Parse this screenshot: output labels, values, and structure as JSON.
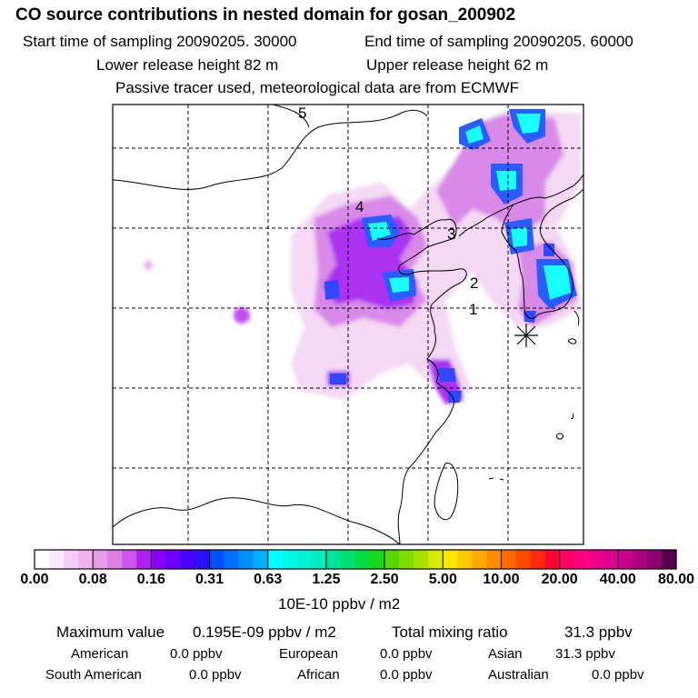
{
  "header": {
    "title": "CO  source contributions in nested domain for gosan_200902",
    "start_label": "Start time of sampling 20090205. 30000",
    "end_label": "End time of sampling 20090205. 60000",
    "lower_label": "Lower release height   82 m",
    "upper_label": "Upper release height   62 m",
    "note": "Passive tracer used, meteorological data are from ECMWF"
  },
  "chart_data": {
    "type": "heatmap",
    "title": "CO  source contributions in nested domain for gosan_200902",
    "map": "East Asia (China, Korea, Japan, Taiwan) with lat/lon grid lines",
    "receptor": "Gosan (asterisk marker)",
    "trajectory_markers": [
      "1",
      "2",
      "3",
      "4",
      "5"
    ],
    "colorbar": {
      "ticks": [
        "0.00",
        "0.08",
        "0.16",
        "0.31",
        "0.63",
        "1.25",
        "2.50",
        "5.00",
        "10.00",
        "20.00",
        "40.00",
        "80.00"
      ],
      "colors": [
        "#ffffff",
        "#fbe6fb",
        "#f6cdf6",
        "#f0b2f0",
        "#e69be9",
        "#dd7de6",
        "#cc55ea",
        "#b31fee",
        "#8a00ff",
        "#6a00ff",
        "#4a00ff",
        "#2a10ff",
        "#0050ff",
        "#0070ff",
        "#0090ff",
        "#00b0ff",
        "#00ffff",
        "#00f8e8",
        "#00f2d2",
        "#00ecbc",
        "#00e59a",
        "#00e06e",
        "#00dc42",
        "#18d81a",
        "#55d800",
        "#80dc00",
        "#aae200",
        "#d4ea00",
        "#ffe600",
        "#ffc800",
        "#ffaa00",
        "#ff8c00",
        "#ff6a00",
        "#ff4a00",
        "#ff2a10",
        "#ff0030",
        "#ff0060",
        "#ff0080",
        "#ee0088",
        "#dd0090",
        "#c8008c",
        "#aa0080",
        "#8a0070",
        "#5a0050"
      ],
      "unit": "10E-10 ppbv / m2"
    },
    "stats": {
      "max_label": "Maximum value",
      "max_value": "0.195E-09 ppbv / m2",
      "total_label": "Total mixing ratio",
      "total_value": "31.3 ppbv",
      "regions": [
        {
          "name": "American",
          "value": "0.0 ppbv"
        },
        {
          "name": "European",
          "value": "0.0 ppbv"
        },
        {
          "name": "Asian",
          "value": "31.3 ppbv"
        },
        {
          "name": "South American",
          "value": "0.0 ppbv"
        },
        {
          "name": "African",
          "value": "0.0 ppbv"
        },
        {
          "name": "Australian",
          "value": "0.0 ppbv"
        }
      ]
    }
  }
}
